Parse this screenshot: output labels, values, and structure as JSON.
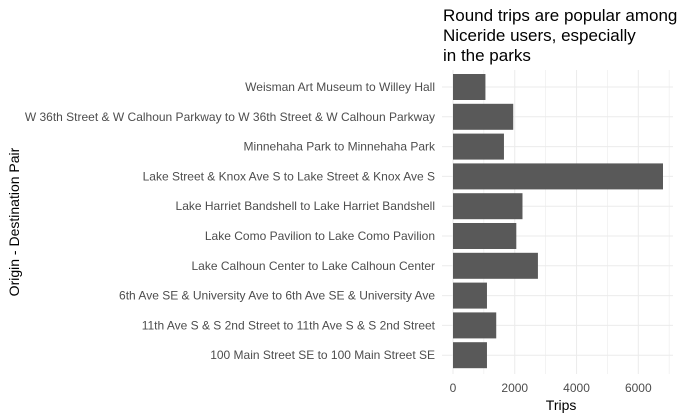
{
  "chart_data": {
    "type": "bar",
    "orientation": "horizontal",
    "title_lines": [
      "Round trips are popular among",
      "Niceride users, especially",
      "in the parks"
    ],
    "xlabel": "Trips",
    "ylabel": "Origin - Destination Pair",
    "categories": [
      "Weisman Art Museum to Willey Hall",
      "W 36th Street & W Calhoun Parkway to W 36th Street & W Calhoun Parkway",
      "Minnehaha Park to Minnehaha Park",
      "Lake Street & Knox Ave S to Lake Street & Knox Ave S",
      "Lake Harriet Bandshell to Lake Harriet Bandshell",
      "Lake Como Pavilion to Lake Como Pavilion",
      "Lake Calhoun Center to Lake Calhoun Center",
      "6th Ave SE & University Ave to 6th Ave SE & University Ave",
      "11th Ave S & S 2nd Street to 11th Ave S & S 2nd Street",
      "100 Main Street SE to 100 Main Street SE"
    ],
    "values": [
      1050,
      1950,
      1650,
      6800,
      2250,
      2050,
      2750,
      1100,
      1400,
      1100
    ],
    "xticks": [
      0,
      2000,
      4000,
      6000
    ],
    "xtick_labels": [
      "0",
      "2000",
      "4000",
      "6000"
    ],
    "xlim": [
      0,
      7000
    ],
    "grid": true,
    "legend": "none",
    "bar_color": "#595959",
    "grid_color": "#ebebeb"
  }
}
